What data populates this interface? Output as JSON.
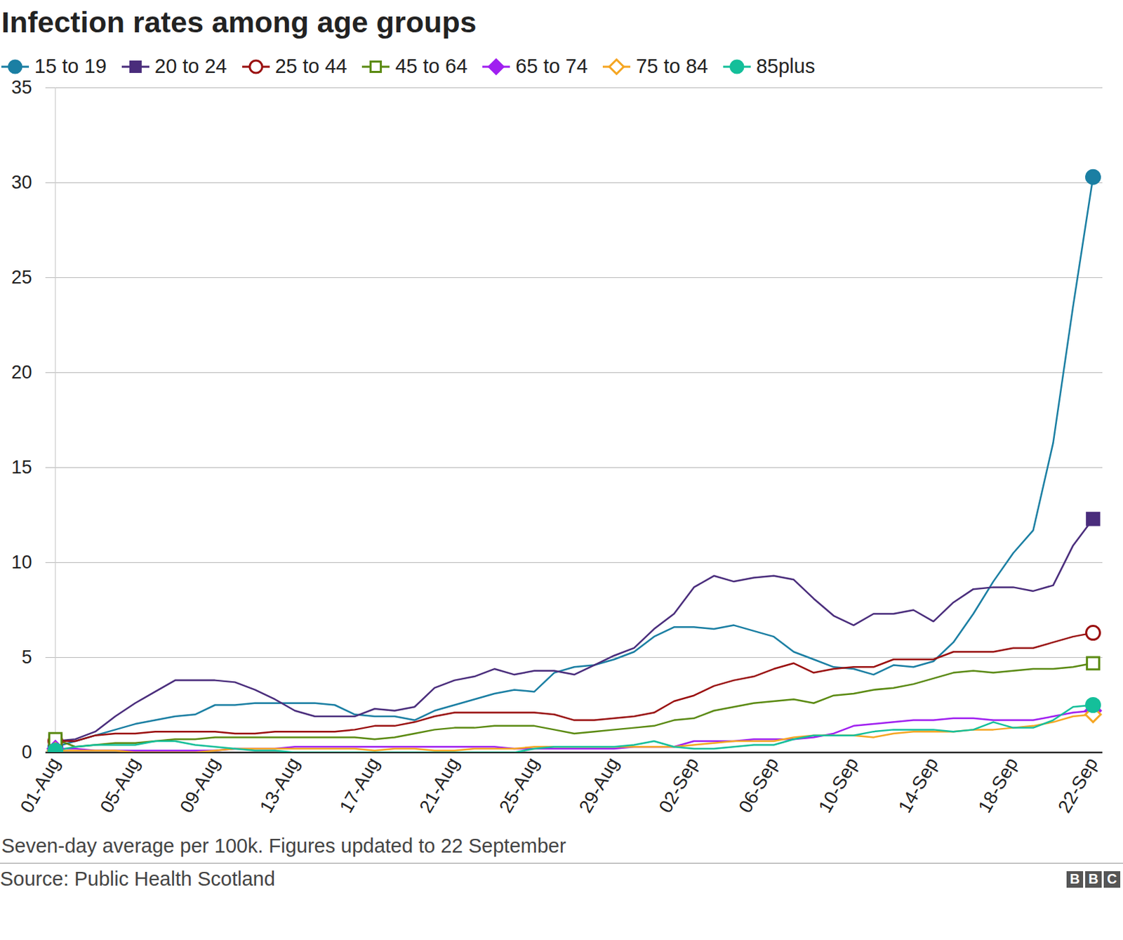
{
  "chart_data": {
    "type": "line",
    "title": "Infection rates among age groups",
    "note": "Seven-day average per 100k. Figures updated to 22 September",
    "source": "Source: Public Health Scotland",
    "logo": "BBC",
    "categories": [
      "01-Aug",
      null,
      null,
      null,
      "05-Aug",
      null,
      null,
      null,
      "09-Aug",
      null,
      null,
      null,
      "13-Aug",
      null,
      null,
      null,
      "17-Aug",
      null,
      null,
      null,
      "21-Aug",
      null,
      null,
      null,
      "25-Aug",
      null,
      null,
      null,
      "29-Aug",
      null,
      null,
      null,
      "02-Sep",
      null,
      null,
      null,
      "06-Sep",
      null,
      null,
      null,
      "10-Sep",
      null,
      null,
      null,
      "14-Sep",
      null,
      null,
      null,
      "18-Sep",
      null,
      null,
      null,
      "22-Sep"
    ],
    "ylim": [
      0,
      35
    ],
    "yticks": [
      0,
      5,
      10,
      15,
      20,
      25,
      30,
      35
    ],
    "grid": true,
    "legend": "top",
    "series": [
      {
        "name": "15 to 19",
        "color": "#1b7fa3",
        "marker": "circle",
        "values": [
          0.3,
          0.6,
          0.9,
          1.2,
          1.5,
          1.7,
          1.9,
          2.0,
          2.5,
          2.5,
          2.6,
          2.6,
          2.6,
          2.6,
          2.5,
          2.0,
          1.9,
          1.9,
          1.7,
          2.2,
          2.5,
          2.8,
          3.1,
          3.3,
          3.2,
          4.2,
          4.5,
          4.6,
          4.9,
          5.3,
          6.1,
          6.6,
          6.6,
          6.5,
          6.7,
          6.4,
          6.1,
          5.3,
          4.9,
          4.5,
          4.4,
          4.1,
          4.6,
          4.5,
          4.8,
          5.8,
          7.3,
          9.0,
          10.5,
          11.7,
          16.3,
          23.5,
          30.3
        ]
      },
      {
        "name": "20 to 24",
        "color": "#4a2d7c",
        "marker": "square",
        "values": [
          0.6,
          0.7,
          1.1,
          1.9,
          2.6,
          3.2,
          3.8,
          3.8,
          3.8,
          3.7,
          3.3,
          2.8,
          2.2,
          1.9,
          1.9,
          1.9,
          2.3,
          2.2,
          2.4,
          3.4,
          3.8,
          4.0,
          4.4,
          4.1,
          4.3,
          4.3,
          4.1,
          4.6,
          5.1,
          5.5,
          6.5,
          7.3,
          8.7,
          9.3,
          9.0,
          9.2,
          9.3,
          9.1,
          8.1,
          7.2,
          6.7,
          7.3,
          7.3,
          7.5,
          6.9,
          7.9,
          8.6,
          8.7,
          8.7,
          8.5,
          8.8,
          10.9,
          12.3
        ]
      },
      {
        "name": "25 to 44",
        "color": "#9a1010",
        "marker": "circle-open",
        "values": [
          0.6,
          0.6,
          0.9,
          1.0,
          1.0,
          1.1,
          1.1,
          1.1,
          1.1,
          1.0,
          1.0,
          1.1,
          1.1,
          1.1,
          1.1,
          1.2,
          1.4,
          1.4,
          1.6,
          1.9,
          2.1,
          2.1,
          2.1,
          2.1,
          2.1,
          2.0,
          1.7,
          1.7,
          1.8,
          1.9,
          2.1,
          2.7,
          3.0,
          3.5,
          3.8,
          4.0,
          4.4,
          4.7,
          4.2,
          4.4,
          4.5,
          4.5,
          4.9,
          4.9,
          4.9,
          5.3,
          5.3,
          5.3,
          5.5,
          5.5,
          5.8,
          6.1,
          6.3
        ]
      },
      {
        "name": "45 to 64",
        "color": "#5b8a12",
        "marker": "square-open",
        "values": [
          0.7,
          0.3,
          0.4,
          0.5,
          0.5,
          0.6,
          0.7,
          0.7,
          0.8,
          0.8,
          0.8,
          0.8,
          0.8,
          0.8,
          0.8,
          0.8,
          0.7,
          0.8,
          1.0,
          1.2,
          1.3,
          1.3,
          1.4,
          1.4,
          1.4,
          1.2,
          1.0,
          1.1,
          1.2,
          1.3,
          1.4,
          1.7,
          1.8,
          2.2,
          2.4,
          2.6,
          2.7,
          2.8,
          2.6,
          3.0,
          3.1,
          3.3,
          3.4,
          3.6,
          3.9,
          4.2,
          4.3,
          4.2,
          4.3,
          4.4,
          4.4,
          4.5,
          4.7
        ]
      },
      {
        "name": "65 to 74",
        "color": "#a020f0",
        "marker": "diamond",
        "values": [
          0.2,
          0.2,
          0.1,
          0.1,
          0.1,
          0.1,
          0.1,
          0.1,
          0.1,
          0.2,
          0.2,
          0.2,
          0.3,
          0.3,
          0.3,
          0.3,
          0.3,
          0.3,
          0.3,
          0.3,
          0.3,
          0.3,
          0.3,
          0.2,
          0.2,
          0.2,
          0.2,
          0.2,
          0.2,
          0.3,
          0.3,
          0.3,
          0.6,
          0.6,
          0.6,
          0.7,
          0.7,
          0.7,
          0.8,
          1.0,
          1.4,
          1.5,
          1.6,
          1.7,
          1.7,
          1.8,
          1.8,
          1.7,
          1.7,
          1.7,
          1.9,
          2.1,
          2.2
        ]
      },
      {
        "name": "75 to 84",
        "color": "#f5a623",
        "marker": "diamond-open",
        "values": [
          0.1,
          0.1,
          0.1,
          0.1,
          0.0,
          0.0,
          0.0,
          0.0,
          0.1,
          0.2,
          0.2,
          0.2,
          0.2,
          0.2,
          0.2,
          0.2,
          0.1,
          0.2,
          0.2,
          0.1,
          0.1,
          0.2,
          0.2,
          0.2,
          0.3,
          0.3,
          0.3,
          0.3,
          0.3,
          0.3,
          0.3,
          0.3,
          0.4,
          0.5,
          0.6,
          0.6,
          0.6,
          0.8,
          0.9,
          0.9,
          0.9,
          0.8,
          1.0,
          1.1,
          1.1,
          1.1,
          1.2,
          1.2,
          1.3,
          1.4,
          1.6,
          1.9,
          2.0
        ]
      },
      {
        "name": "85plus",
        "color": "#14bf9a",
        "marker": "circle",
        "values": [
          0.1,
          0.3,
          0.4,
          0.4,
          0.4,
          0.6,
          0.6,
          0.4,
          0.3,
          0.2,
          0.1,
          0.1,
          0.0,
          0.0,
          0.0,
          0.0,
          0.0,
          0.0,
          0.0,
          0.0,
          0.0,
          0.0,
          0.0,
          0.0,
          0.2,
          0.3,
          0.3,
          0.3,
          0.3,
          0.4,
          0.6,
          0.3,
          0.2,
          0.2,
          0.3,
          0.4,
          0.4,
          0.7,
          0.9,
          0.9,
          0.9,
          1.1,
          1.2,
          1.2,
          1.2,
          1.1,
          1.2,
          1.6,
          1.3,
          1.3,
          1.7,
          2.4,
          2.5
        ]
      }
    ]
  }
}
